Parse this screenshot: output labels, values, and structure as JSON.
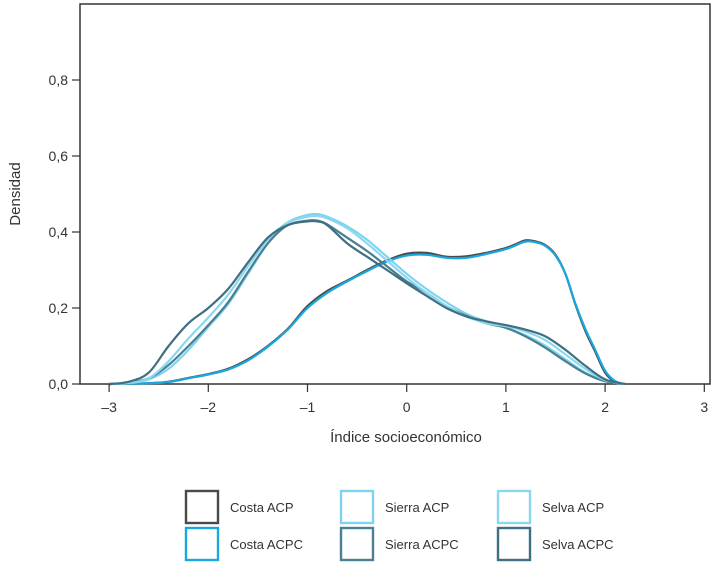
{
  "chart_data": {
    "type": "line",
    "subtype": "density",
    "xlabel": "Índice socioeconómico",
    "ylabel": "Densidad",
    "xlim": [
      -3.1,
      3.1
    ],
    "ylim": [
      0,
      1.0
    ],
    "xticks": [
      -3,
      -2,
      -1,
      0,
      1,
      2,
      3
    ],
    "xtick_labels": [
      "–3",
      "–2",
      "–1",
      "0",
      "1",
      "2",
      "3"
    ],
    "yticks": [
      0.0,
      0.2,
      0.4,
      0.6,
      0.8
    ],
    "ytick_labels": [
      "0,0",
      "0,2",
      "0,4",
      "0,6",
      "0,8"
    ],
    "grid": false,
    "legend_position": "bottom",
    "series": [
      {
        "name": "Costa ACP",
        "color": "#4a4a4a",
        "x": [
          -3.0,
          -2.6,
          -2.4,
          -2.2,
          -2.0,
          -1.8,
          -1.6,
          -1.4,
          -1.2,
          -1.0,
          -0.8,
          -0.6,
          -0.4,
          -0.2,
          0.0,
          0.2,
          0.4,
          0.6,
          0.8,
          1.0,
          1.1,
          1.2,
          1.3,
          1.4,
          1.5,
          1.6,
          1.7,
          1.8,
          1.9,
          2.0,
          2.1,
          2.2
        ],
        "y": [
          0.0,
          0.002,
          0.006,
          0.016,
          0.026,
          0.04,
          0.065,
          0.1,
          0.145,
          0.205,
          0.245,
          0.272,
          0.3,
          0.325,
          0.343,
          0.345,
          0.335,
          0.336,
          0.345,
          0.358,
          0.368,
          0.378,
          0.375,
          0.365,
          0.34,
          0.29,
          0.21,
          0.14,
          0.085,
          0.03,
          0.006,
          0.0
        ]
      },
      {
        "name": "Costa ACPC",
        "color": "#1aa7e0",
        "x": [
          -3.0,
          -2.6,
          -2.4,
          -2.2,
          -2.0,
          -1.8,
          -1.6,
          -1.4,
          -1.2,
          -1.0,
          -0.8,
          -0.6,
          -0.4,
          -0.2,
          0.0,
          0.2,
          0.4,
          0.6,
          0.8,
          1.0,
          1.1,
          1.2,
          1.3,
          1.4,
          1.5,
          1.6,
          1.7,
          1.8,
          1.9,
          2.0,
          2.1,
          2.2
        ],
        "y": [
          0.0,
          0.002,
          0.005,
          0.015,
          0.025,
          0.038,
          0.062,
          0.098,
          0.143,
          0.2,
          0.24,
          0.27,
          0.297,
          0.322,
          0.338,
          0.34,
          0.332,
          0.332,
          0.342,
          0.355,
          0.365,
          0.375,
          0.373,
          0.363,
          0.338,
          0.29,
          0.212,
          0.145,
          0.09,
          0.035,
          0.008,
          0.0
        ]
      },
      {
        "name": "Sierra ACP",
        "color": "#7fd3f2",
        "x": [
          -3.0,
          -2.8,
          -2.6,
          -2.4,
          -2.2,
          -2.0,
          -1.8,
          -1.6,
          -1.4,
          -1.2,
          -1.0,
          -0.9,
          -0.8,
          -0.6,
          -0.4,
          -0.2,
          0.0,
          0.2,
          0.4,
          0.6,
          0.8,
          1.0,
          1.2,
          1.4,
          1.6,
          1.8,
          2.0,
          2.2
        ],
        "y": [
          0.0,
          0.002,
          0.012,
          0.04,
          0.09,
          0.15,
          0.21,
          0.29,
          0.37,
          0.425,
          0.445,
          0.447,
          0.44,
          0.415,
          0.38,
          0.335,
          0.29,
          0.25,
          0.215,
          0.185,
          0.165,
          0.148,
          0.128,
          0.1,
          0.065,
          0.03,
          0.008,
          0.0
        ]
      },
      {
        "name": "Sierra ACPC",
        "color": "#4a7f90",
        "x": [
          -3.0,
          -2.8,
          -2.6,
          -2.4,
          -2.2,
          -2.0,
          -1.8,
          -1.6,
          -1.4,
          -1.2,
          -1.0,
          -0.9,
          -0.8,
          -0.6,
          -0.4,
          -0.2,
          0.0,
          0.2,
          0.4,
          0.6,
          0.8,
          1.0,
          1.2,
          1.4,
          1.6,
          1.8,
          2.0,
          2.2
        ],
        "y": [
          0.0,
          0.003,
          0.015,
          0.05,
          0.1,
          0.155,
          0.215,
          0.295,
          0.37,
          0.418,
          0.43,
          0.43,
          0.42,
          0.385,
          0.35,
          0.31,
          0.27,
          0.24,
          0.205,
          0.18,
          0.16,
          0.148,
          0.125,
          0.095,
          0.06,
          0.028,
          0.007,
          0.0
        ]
      },
      {
        "name": "Selva ACP",
        "color": "#8ad8f0",
        "x": [
          -3.0,
          -2.8,
          -2.6,
          -2.4,
          -2.2,
          -2.0,
          -1.8,
          -1.6,
          -1.4,
          -1.2,
          -1.0,
          -0.9,
          -0.8,
          -0.6,
          -0.4,
          -0.2,
          0.0,
          0.2,
          0.4,
          0.6,
          0.8,
          1.0,
          1.2,
          1.4,
          1.6,
          1.8,
          2.0,
          2.2
        ],
        "y": [
          0.0,
          0.003,
          0.015,
          0.06,
          0.12,
          0.175,
          0.235,
          0.31,
          0.38,
          0.425,
          0.44,
          0.442,
          0.436,
          0.41,
          0.37,
          0.325,
          0.28,
          0.24,
          0.205,
          0.178,
          0.16,
          0.152,
          0.138,
          0.115,
          0.078,
          0.04,
          0.01,
          0.0
        ]
      },
      {
        "name": "Selva ACPC",
        "color": "#3f6f82",
        "x": [
          -3.0,
          -2.8,
          -2.6,
          -2.4,
          -2.2,
          -2.0,
          -1.8,
          -1.6,
          -1.4,
          -1.2,
          -1.0,
          -0.9,
          -0.8,
          -0.6,
          -0.4,
          -0.2,
          0.0,
          0.2,
          0.4,
          0.6,
          0.8,
          1.0,
          1.2,
          1.4,
          1.6,
          1.8,
          2.0,
          2.2
        ],
        "y": [
          0.0,
          0.006,
          0.03,
          0.1,
          0.16,
          0.2,
          0.25,
          0.32,
          0.385,
          0.418,
          0.428,
          0.428,
          0.418,
          0.37,
          0.335,
          0.3,
          0.265,
          0.232,
          0.2,
          0.178,
          0.165,
          0.155,
          0.143,
          0.125,
          0.09,
          0.048,
          0.012,
          0.0
        ]
      }
    ]
  }
}
